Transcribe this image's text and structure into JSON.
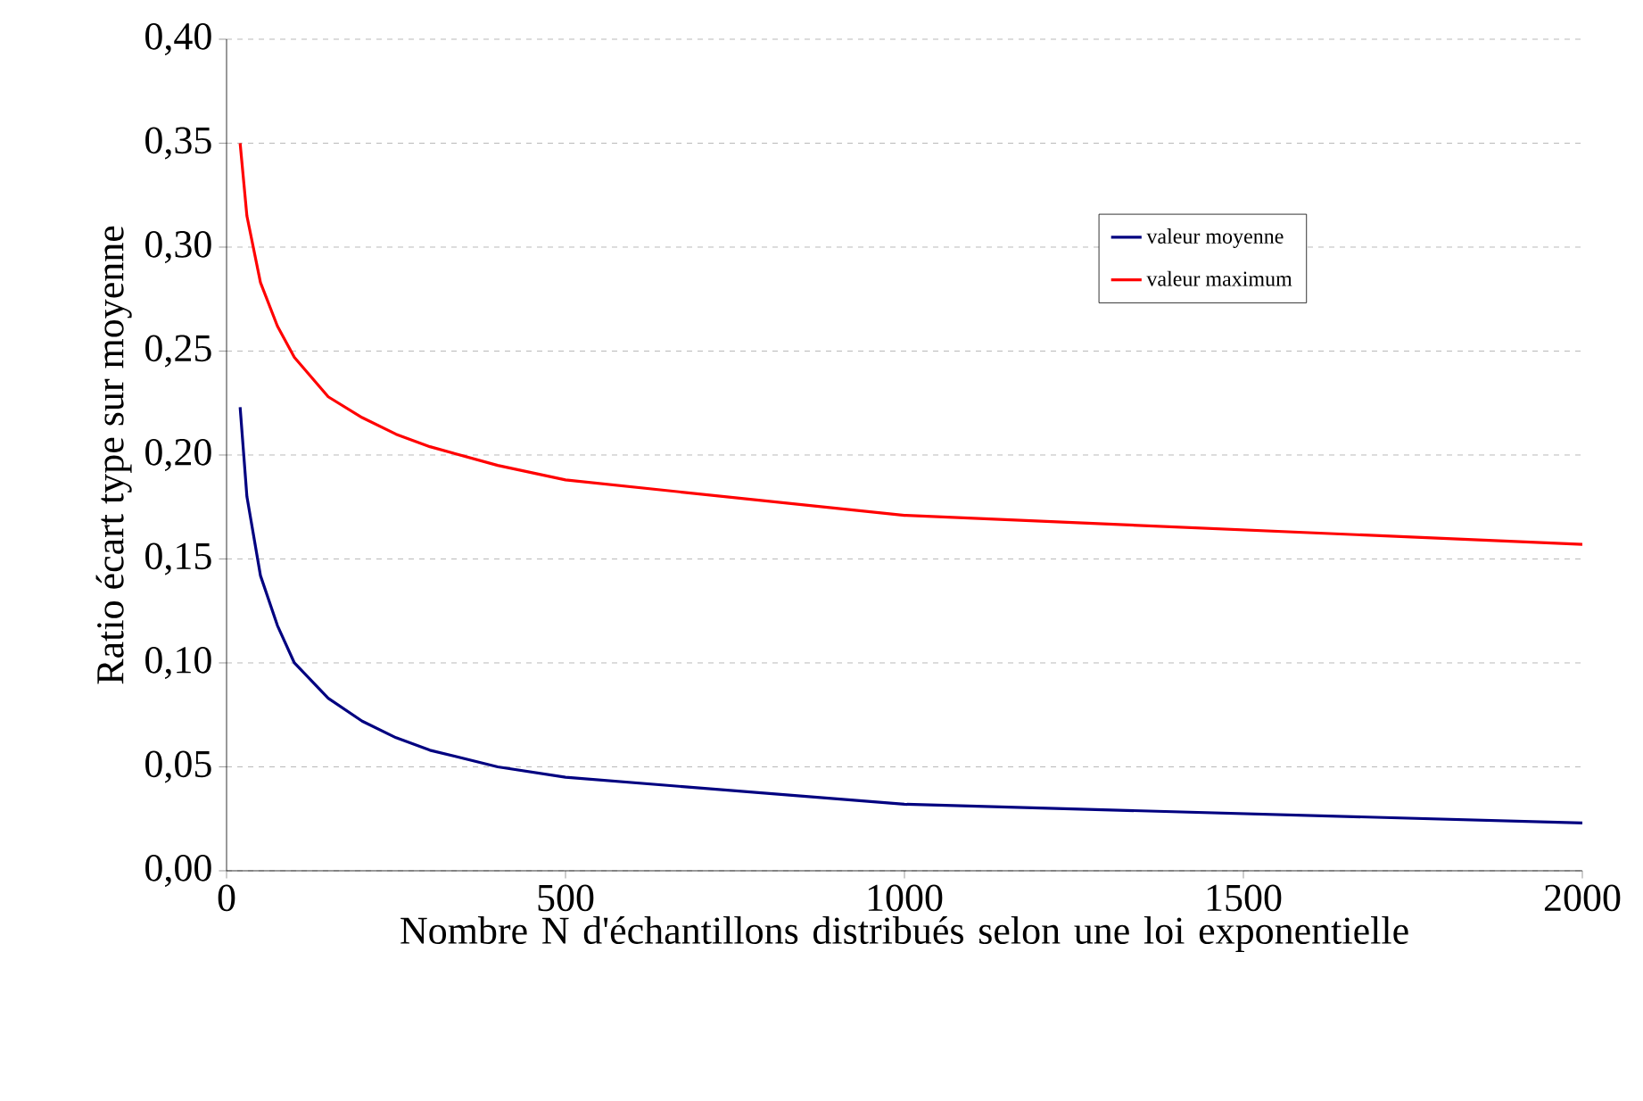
{
  "chart_data": {
    "type": "line",
    "xlabel": "Nombre N d'échantillons distribués selon une loi exponentielle",
    "ylabel": "Ratio écart type sur moyenne",
    "x": [
      20,
      30,
      50,
      75,
      100,
      150,
      200,
      250,
      300,
      400,
      500,
      1000,
      2000
    ],
    "series": [
      {
        "name": "valeur moyenne",
        "color": "#000080",
        "values": [
          0.223,
          0.18,
          0.142,
          0.118,
          0.1,
          0.083,
          0.072,
          0.064,
          0.058,
          0.05,
          0.045,
          0.032,
          0.023
        ]
      },
      {
        "name": "valeur maximum",
        "color": "#ff0000",
        "values": [
          0.35,
          0.315,
          0.283,
          0.262,
          0.247,
          0.228,
          0.218,
          0.21,
          0.204,
          0.195,
          0.188,
          0.171,
          0.157
        ]
      }
    ],
    "xlim": [
      0,
      2000
    ],
    "xticks": [
      0,
      500,
      1000,
      1500,
      2000
    ],
    "ylim": [
      0,
      0.4
    ],
    "yticks": [
      {
        "value": 0,
        "label": "0,00"
      },
      {
        "value": 0.05,
        "label": "0,05"
      },
      {
        "value": 0.1,
        "label": "0,10"
      },
      {
        "value": 0.15,
        "label": "0,15"
      },
      {
        "value": 0.2,
        "label": "0,20"
      },
      {
        "value": 0.25,
        "label": "0,25"
      },
      {
        "value": 0.3,
        "label": "0,30"
      },
      {
        "value": 0.35,
        "label": "0,35"
      },
      {
        "value": 0.4,
        "label": "0,40"
      }
    ],
    "grid": "y",
    "legend": "right",
    "marker": "none",
    "line_style": "solid"
  }
}
